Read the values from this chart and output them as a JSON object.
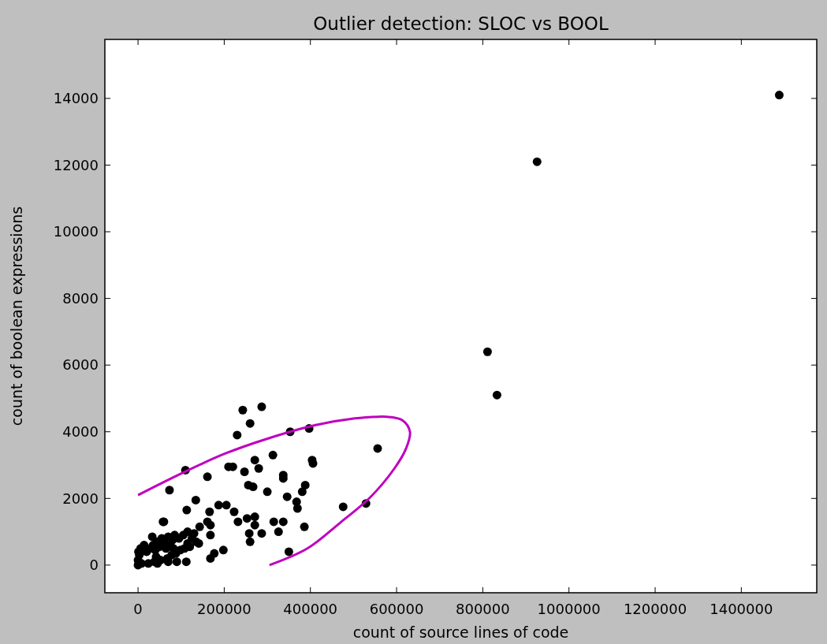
{
  "chart_data": {
    "type": "scatter",
    "title": "Outlier detection: SLOC vs BOOL",
    "xlabel": "count of source lines of code",
    "ylabel": "count of boolean expressions",
    "xlim": [
      -77000,
      1575000
    ],
    "ylim": [
      -830,
      15770
    ],
    "xticks": [
      0,
      200000,
      400000,
      600000,
      800000,
      1000000,
      1200000,
      1400000
    ],
    "yticks": [
      0,
      2000,
      4000,
      6000,
      8000,
      10000,
      12000,
      14000
    ],
    "series": [
      {
        "color": "#000000",
        "marker": "circle",
        "x": [
          1488000,
          926000,
          811000,
          833000,
          556000,
          476000,
          529000,
          350000,
          243000,
          287000,
          260000,
          230000,
          353000,
          397000,
          313000,
          271000,
          280000,
          404000,
          406000,
          210000,
          220000,
          247000,
          161000,
          110000,
          337000,
          337000,
          73000,
          256000,
          267000,
          300000,
          388000,
          381000,
          346000,
          368000,
          370000,
          134000,
          113000,
          166000,
          187000,
          205000,
          223000,
          58000,
          232000,
          253000,
          271000,
          271000,
          258000,
          260000,
          287000,
          315000,
          337000,
          326000,
          386000,
          168000,
          168000,
          198000,
          168000,
          177000,
          143000,
          161000,
          141000,
          33000,
          0,
          8000,
          3000,
          20000,
          28000,
          35000,
          38000,
          40000,
          42000,
          45000,
          50000,
          52000,
          55000,
          62000,
          65000,
          68000,
          70000,
          75000,
          78000,
          80000,
          82000,
          85000,
          88000,
          95000,
          98000,
          105000,
          108000,
          112000,
          115000,
          120000,
          125000,
          130000,
          135000,
          60000,
          0,
          1000,
          6000,
          14000,
          24000,
          45000,
          70000,
          90000,
          115000
        ],
        "values": [
          14100,
          12100,
          6400,
          5100,
          3500,
          1750,
          1850,
          400,
          4650,
          4750,
          4250,
          3900,
          4000,
          4100,
          3300,
          3150,
          2900,
          3150,
          3050,
          2950,
          2950,
          2800,
          2650,
          2850,
          2700,
          2600,
          2250,
          2400,
          2350,
          2200,
          2400,
          2200,
          2050,
          1900,
          1700,
          1950,
          1650,
          1600,
          1800,
          1800,
          1600,
          1300,
          1300,
          1400,
          1450,
          1200,
          950,
          700,
          950,
          1300,
          1300,
          1000,
          1150,
          1200,
          900,
          450,
          200,
          350,
          1150,
          1300,
          650,
          850,
          0,
          50,
          300,
          400,
          500,
          600,
          100,
          450,
          250,
          700,
          550,
          150,
          800,
          650,
          500,
          200,
          850,
          600,
          300,
          750,
          500,
          900,
          350,
          800,
          450,
          900,
          500,
          100,
          650,
          550,
          800,
          950,
          700,
          1300,
          150,
          400,
          500,
          600,
          50,
          50,
          100,
          100,
          1000
        ]
      },
      {
        "type": "line",
        "color": "#bf00bf",
        "marker": "none",
        "x": [
          0,
          100600,
          203000,
          302000,
          412000,
          503000,
          558000,
          576000,
          613000,
          631000,
          622000,
          595000,
          540000,
          467000,
          393000,
          305000
        ],
        "values": [
          2100,
          2750,
          3350,
          3800,
          4200,
          4400,
          4450,
          4450,
          4350,
          4000,
          3500,
          2900,
          2050,
          1250,
          500,
          0
        ]
      }
    ]
  }
}
